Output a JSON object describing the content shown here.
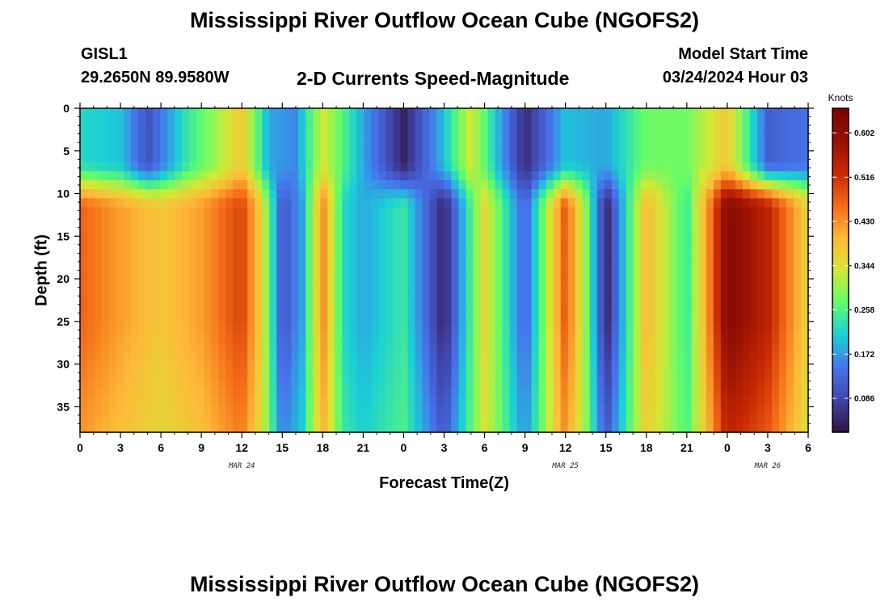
{
  "header": {
    "title": "Mississippi River Outflow Ocean Cube (NGOFS2)",
    "station_name": "GISL1",
    "station_coords": "29.2650N  89.9580W",
    "plot_title": "2-D Currents Speed-Magnitude",
    "model_start_label": "Model Start Time",
    "model_start_value": "03/24/2024 Hour 03"
  },
  "footer": {
    "title": "Mississippi River Outflow Ocean Cube (NGOFS2)"
  },
  "chart_data": {
    "type": "heatmap",
    "title": "2-D Currents Speed-Magnitude",
    "xlabel": "Forecast Time(Z)",
    "ylabel": "Depth (ft)",
    "x_ticks": [
      "0",
      "3",
      "6",
      "9",
      "12",
      "15",
      "18",
      "21",
      "0",
      "3",
      "6",
      "9",
      "12",
      "15",
      "18",
      "21",
      "0",
      "3",
      "6"
    ],
    "x_range_hours": [
      0,
      54
    ],
    "date_labels": [
      {
        "text": "MAR 24",
        "hour": 12
      },
      {
        "text": "MAR 25",
        "hour": 36
      },
      {
        "text": "MAR 26",
        "hour": 51
      }
    ],
    "y_ticks": [
      0,
      5,
      10,
      15,
      20,
      25,
      30,
      35
    ],
    "y_range": [
      0,
      38
    ],
    "y_inverted": true,
    "colorbar": {
      "unit": "Knots",
      "range": [
        0.02,
        0.65
      ],
      "ticks": [
        "0.602",
        "0.516",
        "0.430",
        "0.344",
        "0.258",
        "0.172",
        "0.086"
      ]
    },
    "deep_layer_speed_knots_by_hour": [
      {
        "hour": 0,
        "value": 0.47
      },
      {
        "hour": 3,
        "value": 0.42
      },
      {
        "hour": 6,
        "value": 0.38
      },
      {
        "hour": 9,
        "value": 0.42
      },
      {
        "hour": 12,
        "value": 0.5
      },
      {
        "hour": 13.5,
        "value": 0.36
      },
      {
        "hour": 15,
        "value": 0.1
      },
      {
        "hour": 16.5,
        "value": 0.18
      },
      {
        "hour": 18,
        "value": 0.44
      },
      {
        "hour": 19.5,
        "value": 0.22
      },
      {
        "hour": 21,
        "value": 0.18
      },
      {
        "hour": 24,
        "value": 0.24
      },
      {
        "hour": 27,
        "value": 0.04
      },
      {
        "hour": 30,
        "value": 0.36
      },
      {
        "hour": 33,
        "value": 0.12
      },
      {
        "hour": 36,
        "value": 0.48
      },
      {
        "hour": 37.5,
        "value": 0.3
      },
      {
        "hour": 39,
        "value": 0.04
      },
      {
        "hour": 40.5,
        "value": 0.22
      },
      {
        "hour": 42,
        "value": 0.4
      },
      {
        "hour": 45,
        "value": 0.24
      },
      {
        "hour": 46.5,
        "value": 0.42
      },
      {
        "hour": 48,
        "value": 0.62
      },
      {
        "hour": 51,
        "value": 0.54
      },
      {
        "hour": 54,
        "value": 0.36
      }
    ],
    "surface_layer_speed_knots_by_hour": [
      {
        "hour": 0,
        "value": 0.22
      },
      {
        "hour": 3,
        "value": 0.2
      },
      {
        "hour": 5,
        "value": 0.1
      },
      {
        "hour": 8,
        "value": 0.24
      },
      {
        "hour": 10,
        "value": 0.3
      },
      {
        "hour": 12,
        "value": 0.38
      },
      {
        "hour": 14,
        "value": 0.18
      },
      {
        "hour": 16,
        "value": 0.16
      },
      {
        "hour": 18,
        "value": 0.34
      },
      {
        "hour": 21,
        "value": 0.18
      },
      {
        "hour": 24,
        "value": 0.04
      },
      {
        "hour": 27,
        "value": 0.2
      },
      {
        "hour": 29,
        "value": 0.34
      },
      {
        "hour": 32,
        "value": 0.12
      },
      {
        "hour": 33,
        "value": 0.05
      },
      {
        "hour": 36,
        "value": 0.2
      },
      {
        "hour": 39,
        "value": 0.18
      },
      {
        "hour": 42,
        "value": 0.28
      },
      {
        "hour": 45,
        "value": 0.28
      },
      {
        "hour": 48,
        "value": 0.38
      },
      {
        "hour": 51,
        "value": 0.12
      },
      {
        "hour": 54,
        "value": 0.14
      }
    ]
  }
}
